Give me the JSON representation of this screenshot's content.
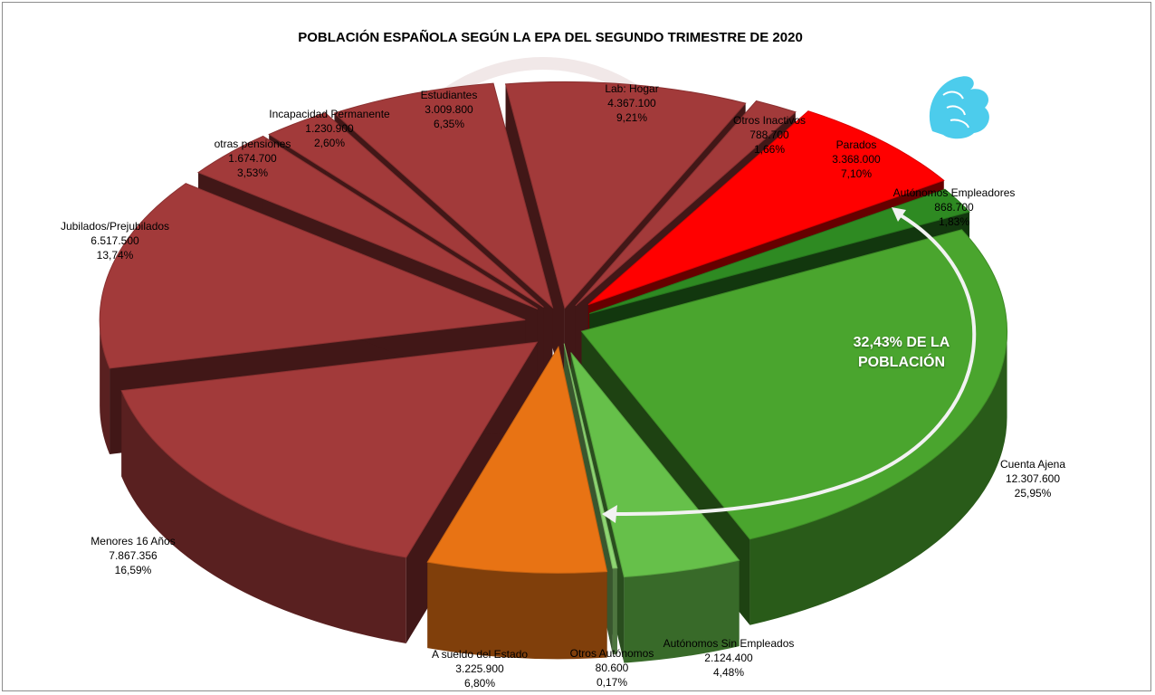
{
  "chart_data": {
    "type": "pie",
    "title": "POBLACIÓN ESPAÑOLA SEGÚN LA EPA DEL SEGUNDO TRIMESTRE DE 2020",
    "slices": [
      {
        "label": "Lab: Hogar",
        "value_text": "4.367.100",
        "percent_text": "9,21%",
        "value": 4367100,
        "percent": 9.21,
        "color": "#a23a3a"
      },
      {
        "label": "Otros Inactivos",
        "value_text": "788.700",
        "percent_text": "1,66%",
        "value": 788700,
        "percent": 1.66,
        "color": "#a23a3a"
      },
      {
        "label": "Parados",
        "value_text": "3.368.000",
        "percent_text": "7,10%",
        "value": 3368000,
        "percent": 7.1,
        "color": "#ff0000"
      },
      {
        "label": "Autónomos Empleadores",
        "value_text": "868.700",
        "percent_text": "1,83%",
        "value": 868700,
        "percent": 1.83,
        "color": "#2e8a22"
      },
      {
        "label": "Cuenta Ajena",
        "value_text": "12.307.600",
        "percent_text": "25,95%",
        "value": 12307600,
        "percent": 25.95,
        "color": "#4aa52e"
      },
      {
        "label": "Autónomos Sin Empleados",
        "value_text": "2.124.400",
        "percent_text": "4,48%",
        "value": 2124400,
        "percent": 4.48,
        "color": "#66c04a"
      },
      {
        "label": "Otros Autónomos",
        "value_text": "80.600",
        "percent_text": "0,17%",
        "value": 80600,
        "percent": 0.17,
        "color": "#8ed672"
      },
      {
        "label": "A sueldo del Estado",
        "value_text": "3.225.900",
        "percent_text": "6,80%",
        "value": 3225900,
        "percent": 6.8,
        "color": "#e87314"
      },
      {
        "label": "Menores 16 Años",
        "value_text": "7.867.356",
        "percent_text": "16,59%",
        "value": 7867356,
        "percent": 16.59,
        "color": "#a23a3a"
      },
      {
        "label": "Jubilados/Prejubilados",
        "value_text": "6.517.500",
        "percent_text": "13,74%",
        "value": 6517500,
        "percent": 13.74,
        "color": "#a23a3a"
      },
      {
        "label": "otras pensiones",
        "value_text": "1.674.700",
        "percent_text": "3,53%",
        "value": 1674700,
        "percent": 3.53,
        "color": "#a23a3a"
      },
      {
        "label": "Incapacidad Permanente",
        "value_text": "1.230.900",
        "percent_text": "2,60%",
        "value": 1230900,
        "percent": 2.6,
        "color": "#a23a3a"
      },
      {
        "label": "Estudiantes",
        "value_text": "3.009.800",
        "percent_text": "6,35%",
        "value": 3009800,
        "percent": 6.35,
        "color": "#a23a3a"
      }
    ],
    "annotation": {
      "line1": "32,43% DE LA",
      "line2": "POBLACIÓN"
    },
    "style": "3d-exploded",
    "logo_icon": "griffin-logo-icon"
  }
}
